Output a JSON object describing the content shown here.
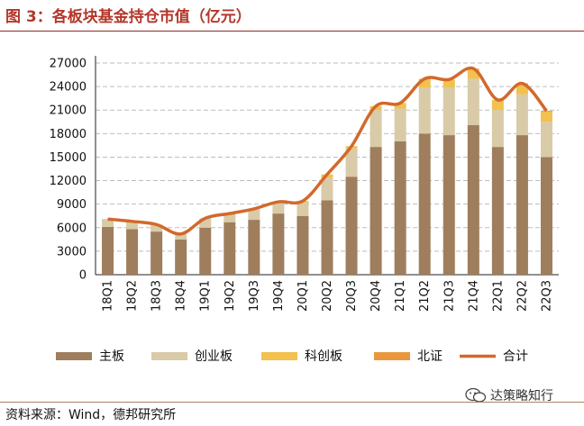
{
  "title": "图 3：各板块基金持仓市值（亿元）",
  "source": "资料来源：Wind，德邦研究所",
  "watermark": "达策略知行",
  "colors": {
    "main_board": "#9e7e5c",
    "chinext": "#d9cba8",
    "star": "#f2c14e",
    "bse": "#e9973e",
    "total": "#d2692b",
    "grid": "#bdbdbd",
    "title": "#b5362a"
  },
  "chart_data": {
    "type": "bar",
    "stacked": true,
    "title": "各板块基金持仓市值（亿元）",
    "xlabel": "",
    "ylabel": "",
    "ylim": [
      0,
      27000
    ],
    "yticks": [
      0,
      3000,
      6000,
      9000,
      12000,
      15000,
      18000,
      21000,
      24000,
      27000
    ],
    "ytick_labels": [
      "0",
      "3000",
      "6000",
      "9000",
      "12000",
      "15000",
      "18000",
      "21000",
      "24000",
      "27000"
    ],
    "grid": true,
    "legend_position": "bottom",
    "categories": [
      "18Q1",
      "18Q2",
      "18Q3",
      "18Q4",
      "19Q1",
      "19Q2",
      "19Q3",
      "19Q4",
      "20Q1",
      "20Q2",
      "20Q3",
      "20Q4",
      "21Q1",
      "21Q2",
      "21Q3",
      "21Q4",
      "22Q1",
      "22Q2",
      "22Q3"
    ],
    "series": [
      {
        "name": "主板",
        "kind": "bar",
        "color": "#9e7e5c",
        "values": [
          6100,
          5800,
          5500,
          4500,
          6000,
          6700,
          7000,
          7800,
          7500,
          9500,
          12500,
          16300,
          17000,
          18000,
          17800,
          19100,
          16300,
          17800,
          15000
        ]
      },
      {
        "name": "创业板",
        "kind": "bar",
        "color": "#d9cba8",
        "values": [
          1000,
          1000,
          900,
          700,
          1200,
          1100,
          1300,
          1400,
          1700,
          2900,
          3600,
          4700,
          4200,
          5900,
          6100,
          5900,
          4700,
          5200,
          4500
        ]
      },
      {
        "name": "科创板",
        "kind": "bar",
        "color": "#f2c14e",
        "values": [
          0,
          0,
          0,
          0,
          0,
          0,
          100,
          100,
          200,
          400,
          300,
          500,
          700,
          1100,
          1000,
          1300,
          1300,
          1300,
          1300
        ]
      },
      {
        "name": "北证",
        "kind": "bar",
        "color": "#e9973e",
        "values": [
          0,
          0,
          0,
          0,
          0,
          0,
          0,
          0,
          0,
          0,
          0,
          0,
          0,
          0,
          0,
          0,
          0,
          100,
          100
        ]
      },
      {
        "name": "合计",
        "kind": "line",
        "color": "#d2692b",
        "values": [
          7100,
          6800,
          6400,
          5200,
          7200,
          7800,
          8400,
          9300,
          9400,
          12800,
          16400,
          21500,
          21900,
          25000,
          24900,
          26300,
          22300,
          24400,
          20900
        ]
      }
    ]
  }
}
